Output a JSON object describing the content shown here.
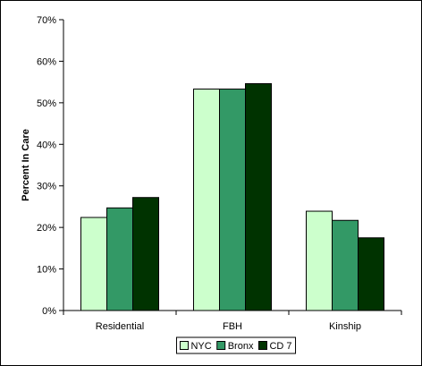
{
  "chart_data": {
    "type": "bar",
    "title": "",
    "xlabel": "",
    "ylabel": "Percent In Care",
    "ylim": [
      0,
      70
    ],
    "ytick_step": 10,
    "ytick_format": "percent",
    "grid": false,
    "legend_position": "bottom",
    "categories": [
      "Residential",
      "FBH",
      "Kinship"
    ],
    "series": [
      {
        "name": "NYC",
        "color": "#ccffcc",
        "values": [
          22.4,
          53.3,
          23.9
        ]
      },
      {
        "name": "Bronx",
        "color": "#339966",
        "values": [
          24.7,
          53.3,
          21.7
        ]
      },
      {
        "name": "CD 7",
        "color": "#003300",
        "values": [
          27.2,
          54.6,
          17.5
        ]
      }
    ]
  }
}
